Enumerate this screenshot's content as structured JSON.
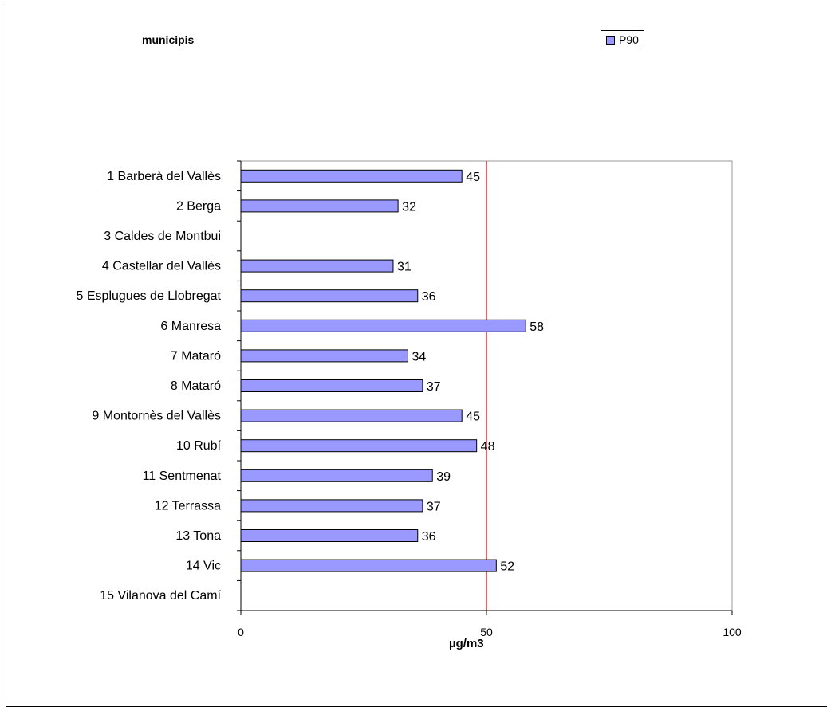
{
  "colors": {
    "bar": "#9999ff",
    "reference_line": "#cc0000",
    "axis": "#000000",
    "plot_border": "#999999"
  },
  "chart_data": {
    "type": "bar",
    "orientation": "horizontal",
    "title": "municipis",
    "xlabel": "µg/m3",
    "ylabel": "",
    "xlim": [
      0,
      100
    ],
    "xticks": [
      0,
      50,
      100
    ],
    "reference_line": 50,
    "grid": false,
    "legend": "top-right",
    "categories": [
      "1 Barberà del Vallès",
      "2 Berga",
      "3 Caldes de Montbui",
      "4 Castellar del Vallès",
      "5 Esplugues de Llobregat",
      "6 Manresa",
      "7 Mataró",
      "8 Mataró",
      "9 Montornès del Vallès",
      "10 Rubí",
      "11 Sentmenat",
      "12 Terrassa",
      "13 Tona",
      "14 Vic",
      "15 Vilanova del Camí"
    ],
    "series": [
      {
        "name": "P90",
        "values": [
          45,
          32,
          null,
          31,
          36,
          58,
          34,
          37,
          45,
          48,
          39,
          37,
          36,
          52,
          null
        ]
      }
    ]
  }
}
